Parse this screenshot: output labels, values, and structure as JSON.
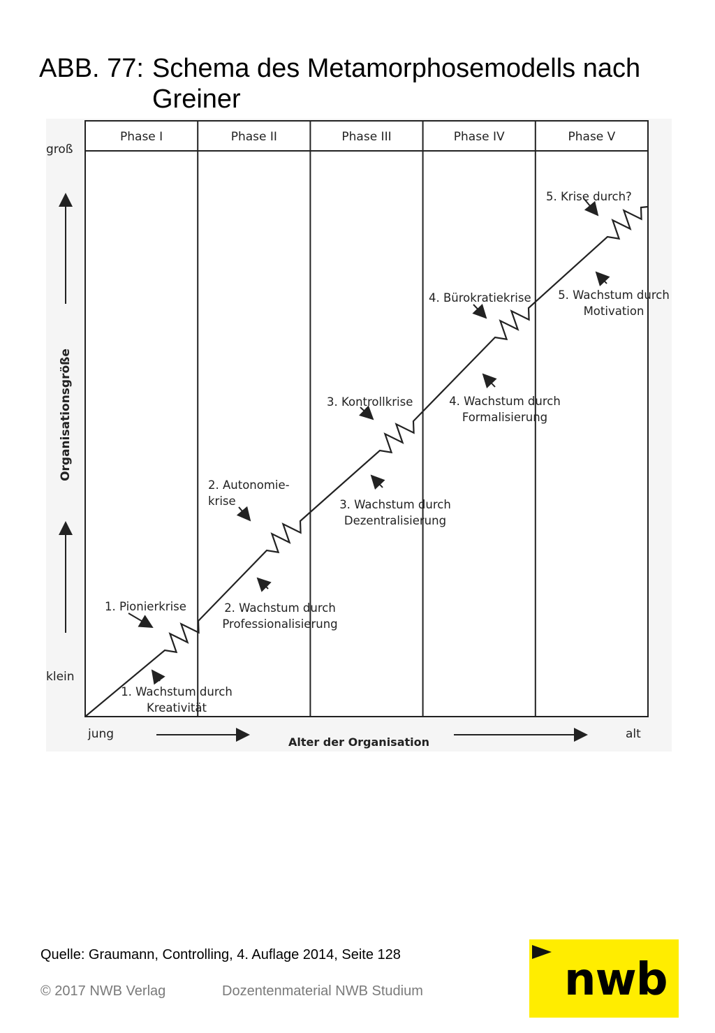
{
  "title": {
    "prefix": "ABB. 77:",
    "line1": "Schema des Metamorphosemodells nach",
    "line2": "Greiner"
  },
  "diagram": {
    "phases": [
      "Phase I",
      "Phase II",
      "Phase III",
      "Phase IV",
      "Phase V"
    ],
    "y_axis": {
      "label": "Organisationsgröße",
      "top": "groß",
      "bottom": "klein"
    },
    "x_axis": {
      "label": "Alter der Organisation",
      "left": "jung",
      "right": "alt"
    },
    "crises": [
      {
        "lines": [
          "1. Pionierkrise"
        ]
      },
      {
        "lines": [
          "2. Autonomie-",
          "krise"
        ]
      },
      {
        "lines": [
          "3. Kontrollkrise"
        ]
      },
      {
        "lines": [
          "4. Bürokratiekrise"
        ]
      },
      {
        "lines": [
          "5. Krise durch?"
        ]
      }
    ],
    "growth": [
      {
        "lines": [
          "1. Wachstum durch",
          "Kreativität"
        ]
      },
      {
        "lines": [
          "2. Wachstum durch",
          "Professionalisierung"
        ]
      },
      {
        "lines": [
          "3. Wachstum durch",
          "Dezentralisierung"
        ]
      },
      {
        "lines": [
          "4. Wachstum durch",
          "Formalisierung"
        ]
      },
      {
        "lines": [
          "5. Wachstum durch",
          "Motivation"
        ]
      }
    ]
  },
  "footer": {
    "source": "Quelle: Graumann, Controlling, 4. Auflage 2014, Seite 128",
    "copyright": "© 2017 NWB Verlag",
    "material": "Dozentenmaterial NWB Studium"
  },
  "logo": {
    "text": "nwb",
    "color": "#ffed00"
  }
}
